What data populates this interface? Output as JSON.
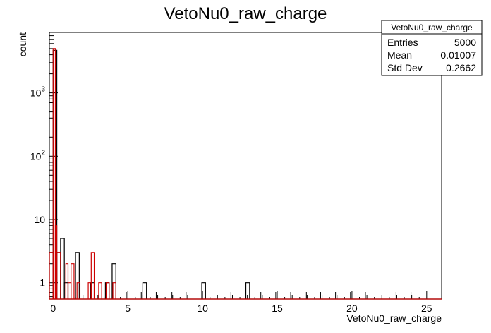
{
  "chart_data": {
    "type": "histogram",
    "title": "VetoNu0_raw_charge",
    "xlabel": "VetoNu0_raw_charge",
    "ylabel": "count",
    "xlim": [
      -0.25,
      26
    ],
    "ylim": [
      0.55,
      9000
    ],
    "y_scale": "log",
    "x_ticks": [
      0,
      5,
      10,
      15,
      20,
      25
    ],
    "y_ticks": [
      {
        "value": 1,
        "label": "1"
      },
      {
        "value": 10,
        "label": "10"
      },
      {
        "value": 100,
        "label": "10",
        "exp": "2"
      },
      {
        "value": 1000,
        "label": "10",
        "exp": "3"
      }
    ],
    "series": [
      {
        "color": "#000000",
        "bins": [
          {
            "x0": -0.25,
            "x1": 0.0,
            "count": 3
          },
          {
            "x0": 0.0,
            "x1": 0.25,
            "count": 4700
          },
          {
            "x0": 0.25,
            "x1": 0.5,
            "count": 3
          },
          {
            "x0": 0.5,
            "x1": 0.75,
            "count": 5
          },
          {
            "x0": 0.75,
            "x1": 1.0,
            "count": 1
          },
          {
            "x0": 1.5,
            "x1": 1.75,
            "count": 3
          },
          {
            "x0": 2.5,
            "x1": 2.75,
            "count": 1
          },
          {
            "x0": 3.5,
            "x1": 3.75,
            "count": 1
          },
          {
            "x0": 3.95,
            "x1": 4.2,
            "count": 2
          },
          {
            "x0": 6.0,
            "x1": 6.25,
            "count": 1
          },
          {
            "x0": 9.95,
            "x1": 10.2,
            "count": 1
          },
          {
            "x0": 12.9,
            "x1": 13.15,
            "count": 1
          }
        ]
      },
      {
        "color": "#cc0000",
        "bins": [
          {
            "x0": -0.25,
            "x1": 0.0,
            "count": 3
          },
          {
            "x0": 0.0,
            "x1": 0.15,
            "count": 5000
          },
          {
            "x0": 0.15,
            "x1": 0.25,
            "count": 8
          },
          {
            "x0": 0.25,
            "x1": 0.5,
            "count": 3
          },
          {
            "x0": 0.85,
            "x1": 1.0,
            "count": 2
          },
          {
            "x0": 1.0,
            "x1": 1.2,
            "count": 1
          },
          {
            "x0": 1.2,
            "x1": 1.4,
            "count": 2
          },
          {
            "x0": 1.6,
            "x1": 1.8,
            "count": 1
          },
          {
            "x0": 2.35,
            "x1": 2.55,
            "count": 1
          },
          {
            "x0": 2.55,
            "x1": 2.75,
            "count": 3
          },
          {
            "x0": 3.05,
            "x1": 3.25,
            "count": 1
          },
          {
            "x0": 3.55,
            "x1": 3.75,
            "count": 1
          },
          {
            "x0": 4.0,
            "x1": 4.2,
            "count": 1
          }
        ]
      }
    ],
    "minor_stub_positions": [
      4.9,
      5.9,
      6.9,
      7.95,
      8.9,
      11.9,
      13.9,
      14.9,
      15.9,
      16.95,
      17.9,
      18.9,
      19.9,
      20.9,
      22.95,
      23.95
    ]
  },
  "stats_box": {
    "title": "VetoNu0_raw_charge",
    "rows": [
      {
        "label": "Entries",
        "value": "5000"
      },
      {
        "label": "Mean",
        "value": "0.01007"
      },
      {
        "label": "Std Dev",
        "value": "0.2662"
      }
    ]
  }
}
